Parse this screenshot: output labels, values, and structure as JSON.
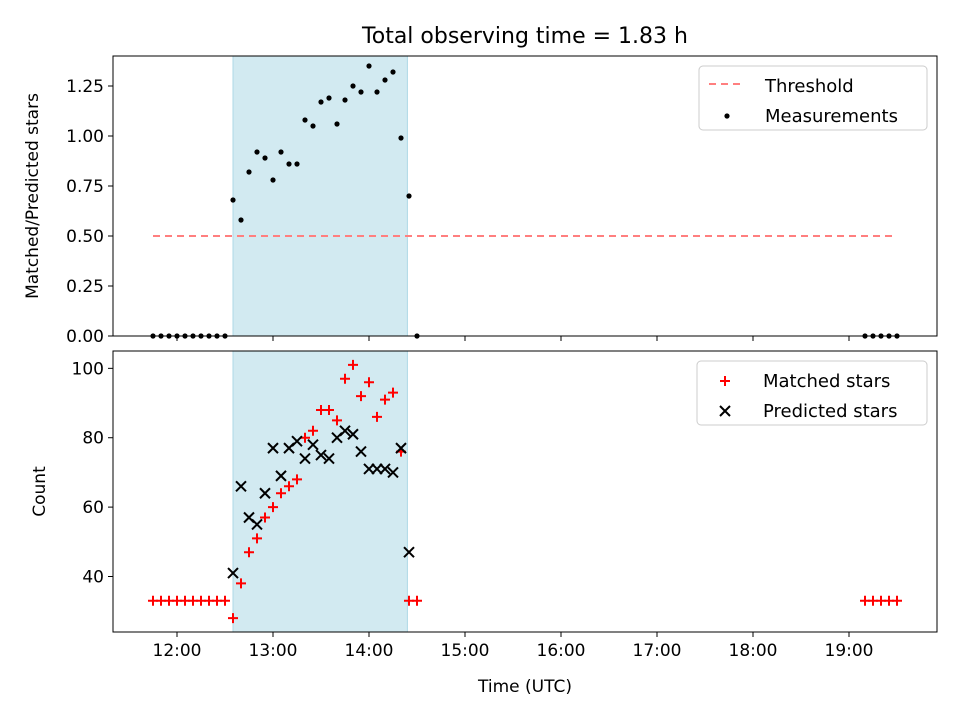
{
  "chart_data": [
    {
      "type": "scatter",
      "title": "Total observing time = 1.83 h",
      "xlabel": "",
      "ylabel": "Matched/Predicted stars",
      "xlim": [
        "11:20",
        "19:55"
      ],
      "ylim": [
        0,
        1.4
      ],
      "y_ticks": [
        "0.00",
        "0.25",
        "0.50",
        "0.75",
        "1.00",
        "1.25"
      ],
      "x_tick_labels_visible": false,
      "grid": false,
      "legend_position": "upper right",
      "shaded_span": {
        "start": "12:35",
        "end": "14:24",
        "color": "#add8e6"
      },
      "series": [
        {
          "name": "Threshold",
          "kind": "dashed-line",
          "color": "#ff7f7f",
          "x": [
            "11:45",
            "19:30"
          ],
          "y": [
            0.5,
            0.5
          ]
        },
        {
          "name": "Measurements",
          "kind": "points",
          "color": "#000000",
          "x": [
            "11:45",
            "11:50",
            "11:55",
            "12:00",
            "12:05",
            "12:10",
            "12:15",
            "12:20",
            "12:25",
            "12:30",
            "12:35",
            "12:40",
            "12:45",
            "12:50",
            "12:55",
            "13:00",
            "13:05",
            "13:10",
            "13:15",
            "13:20",
            "13:25",
            "13:30",
            "13:35",
            "13:40",
            "13:45",
            "13:50",
            "13:55",
            "14:00",
            "14:05",
            "14:10",
            "14:15",
            "14:20",
            "14:25",
            "14:30",
            "19:10",
            "19:15",
            "19:20",
            "19:25",
            "19:30"
          ],
          "y": [
            0,
            0,
            0,
            0,
            0,
            0,
            0,
            0,
            0,
            0,
            0.68,
            0.58,
            0.82,
            0.92,
            0.89,
            0.78,
            0.92,
            0.86,
            0.86,
            1.08,
            1.05,
            1.17,
            1.19,
            1.06,
            1.18,
            1.25,
            1.22,
            1.35,
            1.22,
            1.28,
            1.32,
            0.99,
            0.7,
            0,
            0,
            0,
            0,
            0,
            0
          ]
        }
      ]
    },
    {
      "type": "scatter",
      "title": "",
      "xlabel": "Time (UTC)",
      "ylabel": "Count",
      "xlim": [
        "11:20",
        "19:55"
      ],
      "ylim": [
        24,
        105
      ],
      "y_ticks": [
        40,
        60,
        80,
        100
      ],
      "x_ticks": [
        "12:00",
        "13:00",
        "14:00",
        "15:00",
        "16:00",
        "17:00",
        "18:00",
        "19:00"
      ],
      "grid": false,
      "legend_position": "upper right",
      "shaded_span": {
        "start": "12:35",
        "end": "14:24",
        "color": "#add8e6"
      },
      "series": [
        {
          "name": "Matched stars",
          "marker": "plus",
          "color": "#ff0000",
          "x": [
            "11:45",
            "11:50",
            "11:55",
            "12:00",
            "12:05",
            "12:10",
            "12:15",
            "12:20",
            "12:25",
            "12:30",
            "12:35",
            "12:40",
            "12:45",
            "12:50",
            "12:55",
            "13:00",
            "13:05",
            "13:10",
            "13:15",
            "13:20",
            "13:25",
            "13:30",
            "13:35",
            "13:40",
            "13:45",
            "13:50",
            "13:55",
            "14:00",
            "14:05",
            "14:10",
            "14:15",
            "14:20",
            "14:25",
            "14:30",
            "19:10",
            "19:15",
            "19:20",
            "19:25",
            "19:30"
          ],
          "y": [
            33,
            33,
            33,
            33,
            33,
            33,
            33,
            33,
            33,
            33,
            28,
            38,
            47,
            51,
            57,
            60,
            64,
            66,
            68,
            80,
            82,
            88,
            88,
            85,
            97,
            101,
            92,
            96,
            86,
            91,
            93,
            76,
            33,
            33,
            33,
            33,
            33,
            33,
            33
          ]
        },
        {
          "name": "Predicted stars",
          "marker": "x",
          "color": "#000000",
          "x": [
            "12:35",
            "12:40",
            "12:45",
            "12:50",
            "12:55",
            "13:00",
            "13:05",
            "13:10",
            "13:15",
            "13:20",
            "13:25",
            "13:30",
            "13:35",
            "13:40",
            "13:45",
            "13:50",
            "13:55",
            "14:00",
            "14:05",
            "14:10",
            "14:15",
            "14:20",
            "14:25"
          ],
          "y": [
            41,
            66,
            57,
            55,
            64,
            77,
            69,
            77,
            79,
            74,
            78,
            75,
            74,
            80,
            82,
            81,
            76,
            71,
            71,
            71,
            70,
            77,
            47
          ]
        }
      ]
    }
  ]
}
